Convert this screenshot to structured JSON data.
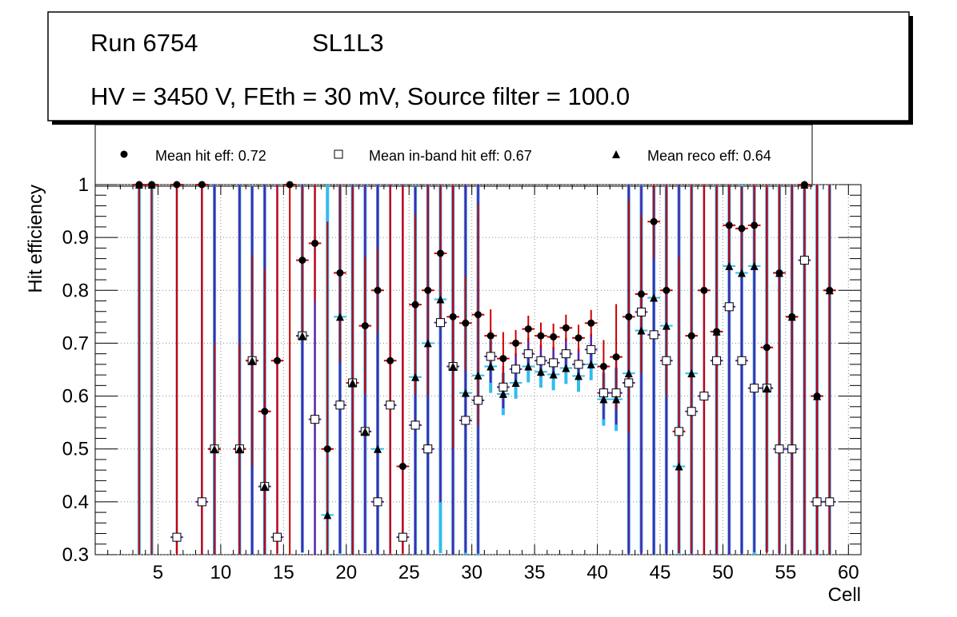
{
  "header": {
    "run_label": "Run 6754",
    "layer_label": "SL1L3",
    "conditions": "HV = 3450 V, FEth = 30 mV, Source filter = 100.0"
  },
  "legend": {
    "hit": "Mean hit  eff: 0.72",
    "inband": "Mean in-band hit eff: 0.67",
    "reco": "Mean reco eff: 0.64"
  },
  "colors": {
    "hit_error": "#cc0000",
    "inband_error": "#5522aa",
    "reco_error": "#33bbee",
    "grid": "#888888"
  },
  "chart_data": {
    "type": "scatter",
    "title": "",
    "xlabel": "Cell",
    "ylabel": "Hit efficiency",
    "xlim": [
      0,
      61
    ],
    "ylim": [
      0.3,
      1.0
    ],
    "x_ticks": [
      5,
      10,
      15,
      20,
      25,
      30,
      35,
      40,
      45,
      50,
      55,
      60
    ],
    "y_ticks": [
      0.3,
      0.4,
      0.5,
      0.6,
      0.7,
      0.8,
      0.9,
      1.0
    ],
    "y_tick_labels": [
      "0.3",
      "0.4",
      "0.5",
      "0.6",
      "0.7",
      "0.8",
      "0.9",
      "1"
    ],
    "grid": true,
    "series": [
      {
        "name": "Mean hit  eff: 0.72",
        "marker": "circle",
        "points": [
          [
            3.5,
            1.0,
            0.0,
            0.7
          ],
          [
            4.5,
            1.0,
            0.0,
            0.7
          ],
          [
            6.5,
            1.0,
            0.0,
            0.7
          ],
          [
            8.5,
            1.0,
            0.0,
            0.7
          ],
          [
            9.5,
            0.5,
            0.2,
            0.2
          ],
          [
            11.5,
            0.5,
            0.2,
            0.2
          ],
          [
            12.5,
            0.667,
            0.2,
            0.2
          ],
          [
            13.5,
            0.571,
            0.27,
            0.27
          ],
          [
            14.5,
            0.667,
            0.33,
            0.37
          ],
          [
            15.5,
            1.0,
            0.0,
            0.7
          ],
          [
            16.5,
            0.857,
            0.14,
            0.14
          ],
          [
            17.5,
            0.889,
            0.11,
            0.11
          ],
          [
            18.5,
            0.5,
            0.43,
            0.2
          ],
          [
            19.5,
            0.833,
            0.17,
            0.17
          ],
          [
            20.5,
            0.625,
            0.37,
            0.33
          ],
          [
            21.5,
            0.733,
            0.13,
            0.13
          ],
          [
            22.5,
            0.8,
            0.08,
            0.08
          ],
          [
            23.5,
            0.667,
            0.33,
            0.37
          ],
          [
            24.5,
            0.467,
            0.53,
            0.17
          ],
          [
            25.5,
            0.773,
            0.17,
            0.17
          ],
          [
            26.5,
            0.8,
            0.2,
            0.2
          ],
          [
            27.5,
            0.87,
            0.13,
            0.13
          ],
          [
            28.5,
            0.75,
            0.25,
            0.25
          ],
          [
            29.5,
            0.738,
            0.09,
            0.09
          ],
          [
            30.5,
            0.754,
            0.21,
            0.21
          ],
          [
            31.5,
            0.714,
            0.05,
            0.05
          ],
          [
            32.5,
            0.671,
            0.05,
            0.05
          ],
          [
            33.5,
            0.7,
            0.025,
            0.025
          ],
          [
            34.5,
            0.727,
            0.025,
            0.025
          ],
          [
            35.5,
            0.714,
            0.025,
            0.025
          ],
          [
            36.5,
            0.712,
            0.025,
            0.025
          ],
          [
            37.5,
            0.729,
            0.025,
            0.025
          ],
          [
            38.5,
            0.71,
            0.025,
            0.025
          ],
          [
            39.5,
            0.738,
            0.025,
            0.025
          ],
          [
            40.5,
            0.656,
            0.05,
            0.05
          ],
          [
            41.5,
            0.674,
            0.1,
            0.1
          ],
          [
            42.5,
            0.75,
            0.22,
            0.22
          ],
          [
            43.5,
            0.793,
            0.15,
            0.15
          ],
          [
            44.5,
            0.93,
            0.07,
            0.07
          ],
          [
            45.5,
            0.8,
            0.2,
            0.2
          ],
          [
            46.5,
            0.533,
            0.33,
            0.23
          ],
          [
            47.5,
            0.714,
            0.29,
            0.41
          ],
          [
            48.5,
            0.8,
            0.2,
            0.5
          ],
          [
            49.5,
            0.722,
            0.28,
            0.42
          ],
          [
            50.5,
            0.923,
            0.08,
            0.08
          ],
          [
            51.5,
            0.917,
            0.08,
            0.08
          ],
          [
            52.5,
            0.923,
            0.08,
            0.08
          ],
          [
            53.5,
            0.692,
            0.31,
            0.39
          ],
          [
            54.5,
            0.833,
            0.17,
            0.53
          ],
          [
            55.5,
            0.75,
            0.25,
            0.45
          ],
          [
            56.5,
            1.0,
            0.0,
            0.7
          ],
          [
            57.5,
            0.6,
            0.4,
            0.3
          ],
          [
            58.5,
            0.8,
            0.2,
            0.5
          ]
        ]
      },
      {
        "name": "Mean in-band hit eff: 0.67",
        "marker": "open-square",
        "points": [
          [
            6.5,
            0.333,
            0.67,
            0.03
          ],
          [
            8.5,
            0.4,
            0.6,
            0.1
          ],
          [
            9.5,
            0.5,
            0.5,
            0.2
          ],
          [
            11.5,
            0.5,
            0.5,
            0.2
          ],
          [
            12.5,
            0.667,
            0.33,
            0.37
          ],
          [
            13.5,
            0.429,
            0.57,
            0.13
          ],
          [
            14.5,
            0.333,
            0.67,
            0.03
          ],
          [
            16.5,
            0.714,
            0.29,
            0.41
          ],
          [
            17.5,
            0.556,
            0.44,
            0.26
          ],
          [
            19.5,
            0.583,
            0.42,
            0.28
          ],
          [
            20.5,
            0.625,
            0.38,
            0.33
          ],
          [
            21.5,
            0.533,
            0.47,
            0.23
          ],
          [
            22.5,
            0.4,
            0.6,
            0.1
          ],
          [
            23.5,
            0.583,
            0.42,
            0.28
          ],
          [
            24.5,
            0.333,
            0.67,
            0.03
          ],
          [
            25.5,
            0.545,
            0.45,
            0.25
          ],
          [
            26.5,
            0.5,
            0.5,
            0.2
          ],
          [
            27.5,
            0.739,
            0.26,
            0.34
          ],
          [
            28.5,
            0.656,
            0.34,
            0.36
          ],
          [
            29.5,
            0.554,
            0.45,
            0.25
          ],
          [
            30.5,
            0.592,
            0.41,
            0.29
          ],
          [
            31.5,
            0.675,
            0.05,
            0.05
          ],
          [
            32.5,
            0.617,
            0.04,
            0.04
          ],
          [
            33.5,
            0.651,
            0.03,
            0.03
          ],
          [
            34.5,
            0.68,
            0.03,
            0.03
          ],
          [
            35.5,
            0.667,
            0.03,
            0.03
          ],
          [
            36.5,
            0.663,
            0.03,
            0.03
          ],
          [
            37.5,
            0.68,
            0.03,
            0.03
          ],
          [
            38.5,
            0.66,
            0.03,
            0.03
          ],
          [
            39.5,
            0.688,
            0.03,
            0.03
          ],
          [
            40.5,
            0.606,
            0.05,
            0.05
          ],
          [
            41.5,
            0.606,
            0.06,
            0.06
          ],
          [
            42.5,
            0.625,
            0.38,
            0.33
          ],
          [
            43.5,
            0.759,
            0.24,
            0.46
          ],
          [
            44.5,
            0.716,
            0.28,
            0.42
          ],
          [
            45.5,
            0.667,
            0.33,
            0.37
          ],
          [
            46.5,
            0.533,
            0.47,
            0.23
          ],
          [
            47.5,
            0.571,
            0.43,
            0.27
          ],
          [
            48.5,
            0.6,
            0.4,
            0.3
          ],
          [
            49.5,
            0.667,
            0.33,
            0.37
          ],
          [
            50.5,
            0.769,
            0.23,
            0.47
          ],
          [
            51.5,
            0.667,
            0.33,
            0.37
          ],
          [
            52.5,
            0.615,
            0.38,
            0.31
          ],
          [
            53.5,
            0.615,
            0.38,
            0.31
          ],
          [
            54.5,
            0.5,
            0.5,
            0.2
          ],
          [
            55.5,
            0.5,
            0.5,
            0.2
          ],
          [
            56.5,
            0.857,
            0.14,
            0.56
          ],
          [
            57.5,
            0.4,
            0.6,
            0.1
          ],
          [
            58.5,
            0.4,
            0.6,
            0.1
          ]
        ]
      },
      {
        "name": "Mean reco eff: 0.64",
        "marker": "triangle",
        "points": [
          [
            3.5,
            1.0,
            0.0,
            0.7
          ],
          [
            4.5,
            1.0,
            0.0,
            0.7
          ],
          [
            9.5,
            0.5,
            0.5,
            0.2
          ],
          [
            11.5,
            0.5,
            0.5,
            0.2
          ],
          [
            12.5,
            0.667,
            0.33,
            0.37
          ],
          [
            13.5,
            0.429,
            0.57,
            0.13
          ],
          [
            16.5,
            0.714,
            0.29,
            0.41
          ],
          [
            18.5,
            0.375,
            0.63,
            0.08
          ],
          [
            19.5,
            0.75,
            0.25,
            0.45
          ],
          [
            20.5,
            0.625,
            0.38,
            0.33
          ],
          [
            21.5,
            0.533,
            0.47,
            0.23
          ],
          [
            22.5,
            0.5,
            0.5,
            0.2
          ],
          [
            25.5,
            0.636,
            0.36,
            0.34
          ],
          [
            26.5,
            0.7,
            0.3,
            0.4
          ],
          [
            27.5,
            0.783,
            0.22,
            0.48
          ],
          [
            28.5,
            0.656,
            0.34,
            0.36
          ],
          [
            29.5,
            0.606,
            0.39,
            0.31
          ],
          [
            30.5,
            0.639,
            0.36,
            0.34
          ],
          [
            31.5,
            0.656,
            0.05,
            0.05
          ],
          [
            32.5,
            0.604,
            0.04,
            0.04
          ],
          [
            33.5,
            0.625,
            0.03,
            0.03
          ],
          [
            34.5,
            0.656,
            0.03,
            0.03
          ],
          [
            35.5,
            0.646,
            0.03,
            0.03
          ],
          [
            36.5,
            0.641,
            0.03,
            0.03
          ],
          [
            37.5,
            0.653,
            0.03,
            0.03
          ],
          [
            38.5,
            0.638,
            0.03,
            0.03
          ],
          [
            39.5,
            0.66,
            0.03,
            0.03
          ],
          [
            40.5,
            0.594,
            0.05,
            0.05
          ],
          [
            41.5,
            0.594,
            0.06,
            0.06
          ],
          [
            42.5,
            0.643,
            0.36,
            0.34
          ],
          [
            43.5,
            0.724,
            0.28,
            0.42
          ],
          [
            44.5,
            0.786,
            0.21,
            0.49
          ],
          [
            45.5,
            0.733,
            0.27,
            0.43
          ],
          [
            46.5,
            0.467,
            0.53,
            0.17
          ],
          [
            47.5,
            0.643,
            0.36,
            0.34
          ],
          [
            49.5,
            0.722,
            0.28,
            0.42
          ],
          [
            50.5,
            0.846,
            0.15,
            0.55
          ],
          [
            51.5,
            0.833,
            0.17,
            0.53
          ],
          [
            52.5,
            0.846,
            0.15,
            0.55
          ],
          [
            53.5,
            0.615,
            0.38,
            0.31
          ],
          [
            54.5,
            0.833,
            0.17,
            0.53
          ],
          [
            55.5,
            0.75,
            0.25,
            0.45
          ],
          [
            56.5,
            1.0,
            0.0,
            0.7
          ],
          [
            57.5,
            0.6,
            0.4,
            0.3
          ],
          [
            58.5,
            0.8,
            0.2,
            0.5
          ]
        ]
      }
    ]
  }
}
